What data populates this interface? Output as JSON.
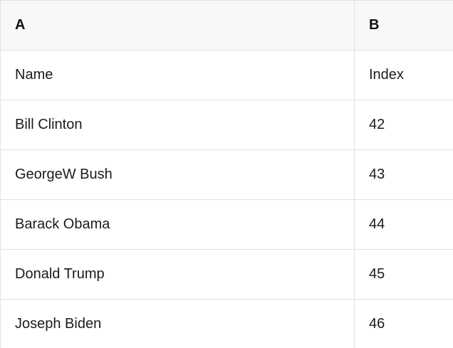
{
  "table": {
    "columns": [
      {
        "label": "A"
      },
      {
        "label": "B"
      }
    ],
    "rows": [
      {
        "a": "Name",
        "b": "Index"
      },
      {
        "a": "Bill Clinton",
        "b": "42"
      },
      {
        "a": "GeorgeW Bush",
        "b": "43"
      },
      {
        "a": "Barack Obama",
        "b": "44"
      },
      {
        "a": "Donald Trump",
        "b": "45"
      },
      {
        "a": "Joseph Biden",
        "b": "46"
      }
    ],
    "colors": {
      "header_background": "#f8f8f8",
      "row_background": "#ffffff",
      "border": "#e2e2e2",
      "text": "#1b1b1b"
    }
  }
}
